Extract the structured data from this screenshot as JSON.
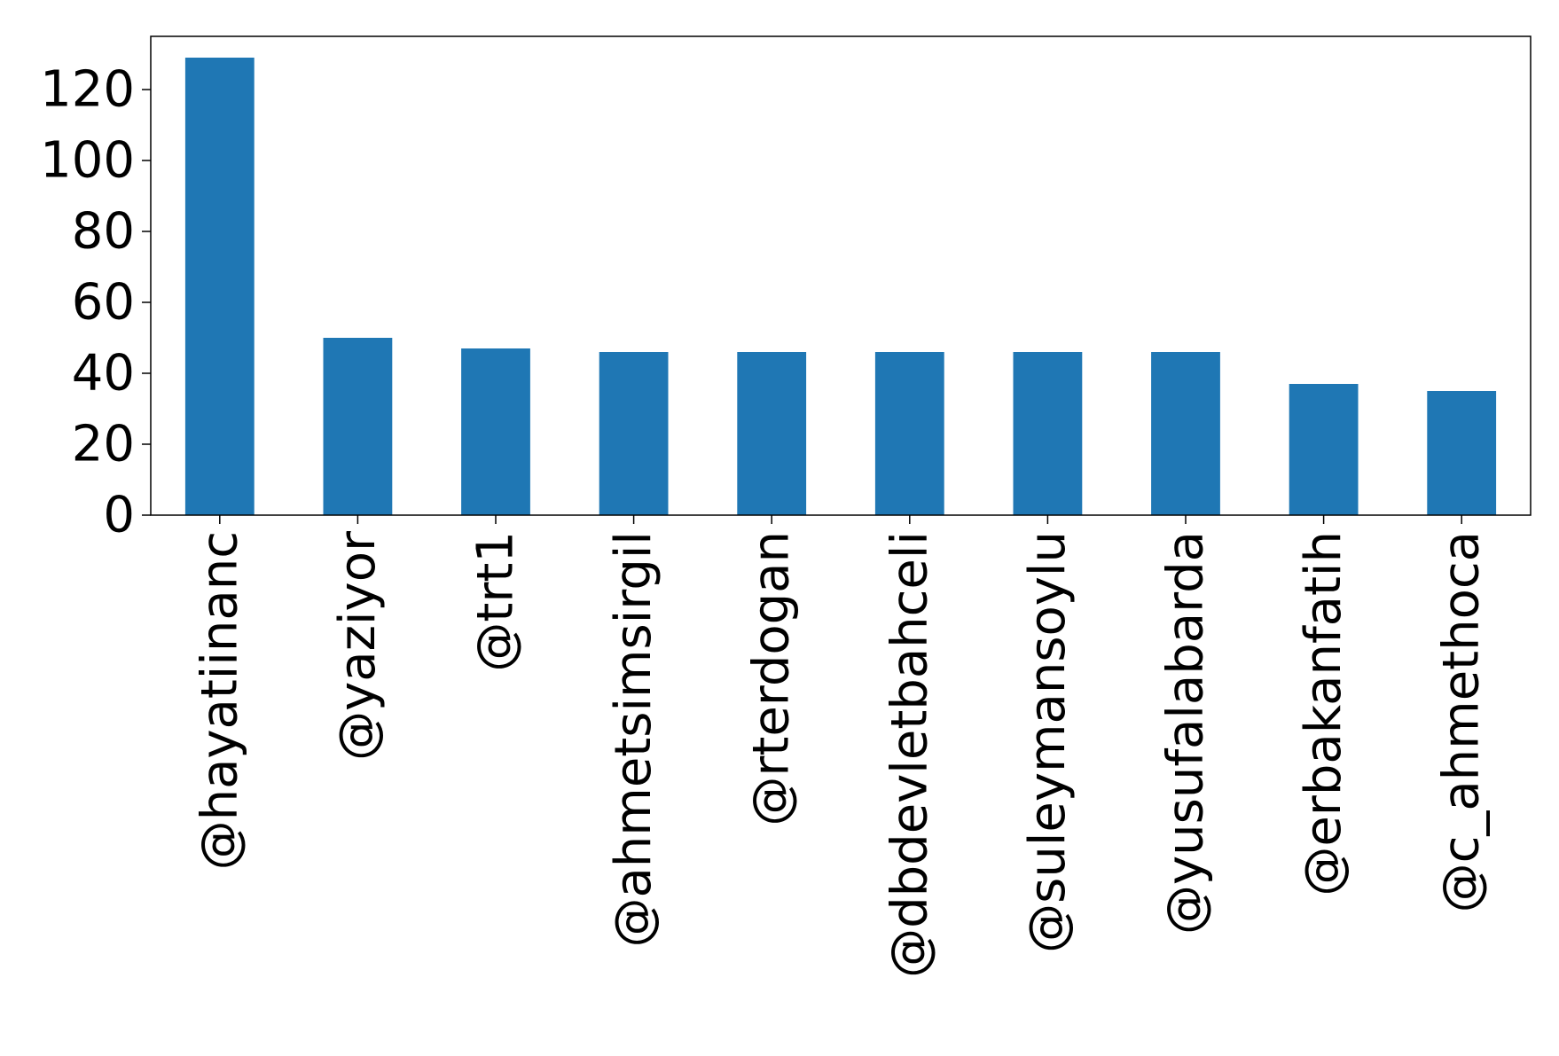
{
  "chart_data": {
    "type": "bar",
    "title": "",
    "xlabel": "",
    "ylabel": "",
    "categories": [
      "@hayatiinanc",
      "@yaziyor",
      "@trt1",
      "@ahmetsimsirgil",
      "@rterdogan",
      "@dbdevletbahceli",
      "@suleymansoylu",
      "@yusufalabarda",
      "@erbakanfatih",
      "@c_ahmethoca"
    ],
    "values": [
      129,
      50,
      47,
      46,
      46,
      46,
      46,
      46,
      37,
      35
    ],
    "ylim": [
      0,
      135
    ],
    "yticks": [
      0,
      20,
      40,
      60,
      80,
      100,
      120
    ],
    "bar_color": "#1f77b4",
    "grid": false,
    "legend": false
  }
}
